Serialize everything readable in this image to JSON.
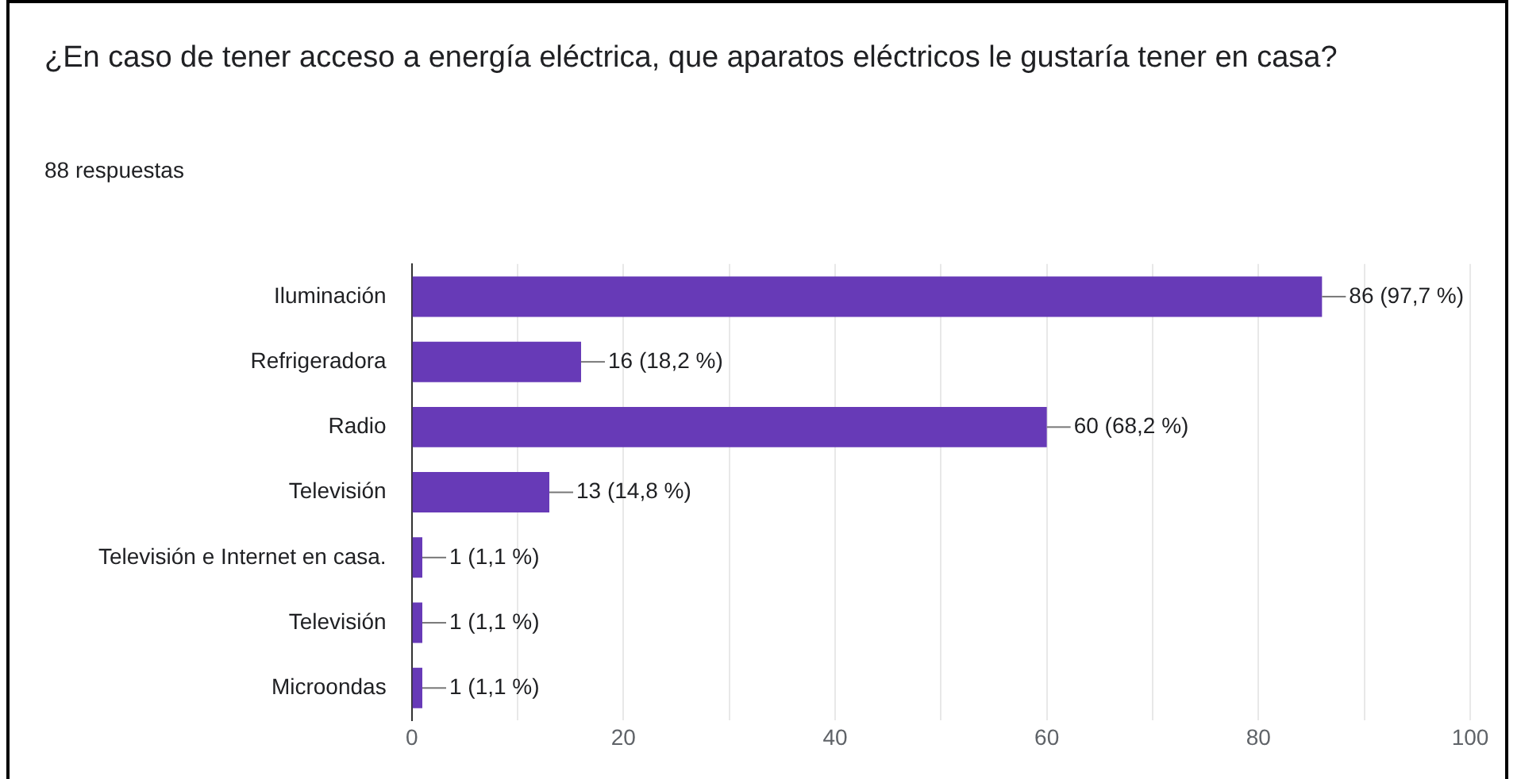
{
  "chart_data": {
    "type": "bar",
    "orientation": "horizontal",
    "title": "¿En caso de tener acceso a energía eléctrica, que aparatos eléctricos le gustaría tener en casa?",
    "subtitle": "88 respuestas",
    "categories": [
      "Iluminación",
      "Refrigeradora",
      "Radio",
      "Televisión",
      "Televisión e Internet en casa.",
      "Televisión",
      "Microondas"
    ],
    "values": [
      86,
      16,
      60,
      13,
      1,
      1,
      1
    ],
    "value_labels": [
      "86 (97,7 %)",
      "16 (18,2 %)",
      "60 (68,2 %)",
      "13 (14,8 %)",
      "1 (1,1 %)",
      "1 (1,1 %)",
      "1 (1,1 %)"
    ],
    "color": "#673ab7",
    "xlim": [
      0,
      100
    ],
    "xticks": [
      0,
      {
        "value": 10,
        "label": null
      },
      20,
      {
        "value": 30,
        "label": null
      },
      40,
      {
        "value": 50,
        "label": null
      },
      60,
      {
        "value": 70,
        "label": null
      },
      80,
      {
        "value": 90,
        "label": null
      },
      100
    ],
    "grid": "x",
    "legend": false
  }
}
